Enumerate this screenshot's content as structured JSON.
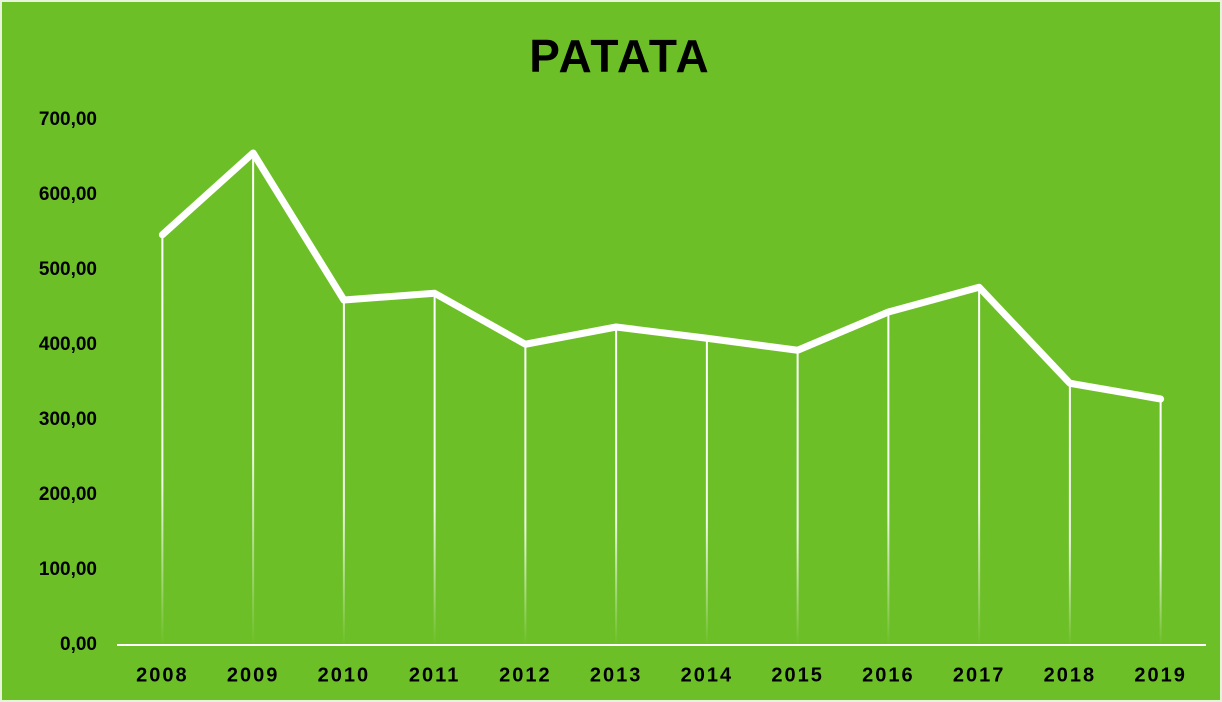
{
  "chart_data": {
    "type": "line",
    "title": "PATATA",
    "categories": [
      "2008",
      "2009",
      "2010",
      "2011",
      "2012",
      "2013",
      "2014",
      "2015",
      "2016",
      "2017",
      "2018",
      "2019"
    ],
    "series": [
      {
        "name": "PATATA",
        "color": "#ffffff",
        "values": [
          547,
          656,
          460,
          469,
          401,
          424,
          409,
          393,
          444,
          477,
          349,
          328
        ]
      }
    ],
    "ylim": [
      0,
      700
    ],
    "yticks": [
      {
        "value": 0,
        "label": "0,00"
      },
      {
        "value": 100,
        "label": "100,00"
      },
      {
        "value": 200,
        "label": "200,00"
      },
      {
        "value": 300,
        "label": "300,00"
      },
      {
        "value": 400,
        "label": "400,00"
      },
      {
        "value": 500,
        "label": "500,00"
      },
      {
        "value": 600,
        "label": "600,00"
      },
      {
        "value": 700,
        "label": "700,00"
      }
    ],
    "drop_lines": true,
    "grid": false,
    "background": "#6dbf27"
  }
}
